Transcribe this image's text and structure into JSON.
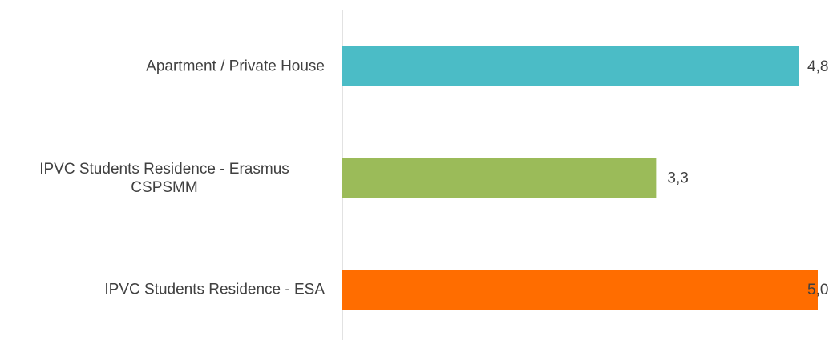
{
  "chart_data": {
    "type": "bar",
    "orientation": "horizontal",
    "categories": [
      "Apartment / Private House",
      "IPVC Students Residence - Erasmus CSPSMM",
      "IPVC Students Residence - ESA"
    ],
    "values": [
      4.8,
      3.3,
      5.0
    ],
    "value_labels": [
      "4,8",
      "3,3",
      "5,0"
    ],
    "colors": [
      "#4bbcc6",
      "#9bbb59",
      "#ff6d00"
    ],
    "xlim": [
      0,
      5
    ],
    "grid": false
  }
}
